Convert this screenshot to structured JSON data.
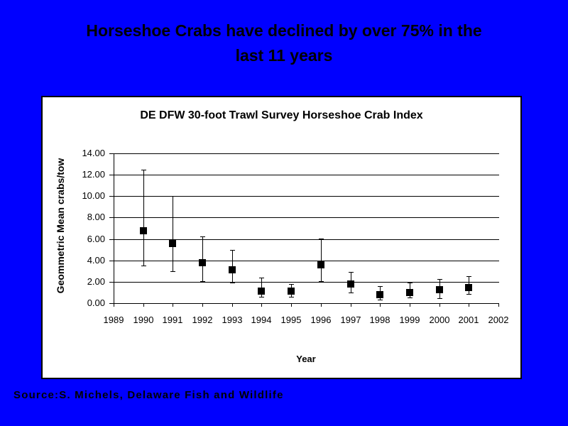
{
  "slide": {
    "background_color": "#0000FF",
    "title_lines": [
      "Horseshoe Crabs have declined by over 75% in the",
      "last 11 years"
    ],
    "source": "Source:S. Michels, Delaware Fish and Wildlife"
  },
  "chart_data": {
    "type": "scatter",
    "title": "DE DFW 30-foot Trawl Survey Horseshoe Crab Index",
    "xlabel": "Year",
    "ylabel": "Geommetric Mean crabs/tow",
    "x_categories": [
      "1989",
      "1990",
      "1991",
      "1992",
      "1993",
      "1994",
      "1995",
      "1996",
      "1997",
      "1998",
      "1999",
      "2000",
      "2001",
      "2002"
    ],
    "ylim": [
      0,
      14
    ],
    "yticks": [
      {
        "value": 0,
        "label": "0.00"
      },
      {
        "value": 2,
        "label": "2.00"
      },
      {
        "value": 4,
        "label": "4.00"
      },
      {
        "value": 6,
        "label": "6.00"
      },
      {
        "value": 8,
        "label": "8.00"
      },
      {
        "value": 10,
        "label": "10.00"
      },
      {
        "value": 12,
        "label": "12.00"
      },
      {
        "value": 14,
        "label": "14.00"
      }
    ],
    "grid": true,
    "legend": false,
    "marker": "filled-square",
    "marker_color": "#000000",
    "error_bars": true,
    "series": [
      {
        "points": [
          {
            "year": "1990",
            "mean": 6.8,
            "upper": 12.5,
            "lower": 3.5
          },
          {
            "year": "1991",
            "mean": 5.6,
            "upper": 10.0,
            "lower": 3.0
          },
          {
            "year": "1992",
            "mean": 3.8,
            "upper": 6.25,
            "lower": 2.05
          },
          {
            "year": "1993",
            "mean": 3.1,
            "upper": 5.0,
            "lower": 1.9
          },
          {
            "year": "1994",
            "mean": 1.1,
            "upper": 2.4,
            "lower": 0.6
          },
          {
            "year": "1995",
            "mean": 1.1,
            "upper": 1.8,
            "lower": 0.6
          },
          {
            "year": "1996",
            "mean": 3.6,
            "upper": 6.05,
            "lower": 2.05
          },
          {
            "year": "1997",
            "mean": 1.8,
            "upper": 2.95,
            "lower": 1.0
          },
          {
            "year": "1998",
            "mean": 0.8,
            "upper": 1.6,
            "lower": 0.3
          },
          {
            "year": "1999",
            "mean": 1.0,
            "upper": 1.9,
            "lower": 0.55
          },
          {
            "year": "2000",
            "mean": 1.25,
            "upper": 2.25,
            "lower": 0.45
          },
          {
            "year": "2001",
            "mean": 1.45,
            "upper": 2.55,
            "lower": 0.85
          }
        ]
      }
    ]
  }
}
